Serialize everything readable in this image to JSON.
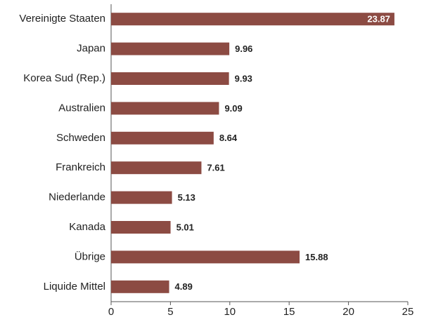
{
  "chart_data": {
    "type": "bar",
    "orientation": "horizontal",
    "categories": [
      "Vereinigte Staaten",
      "Japan",
      "Korea Sud (Rep.)",
      "Australien",
      "Schweden",
      "Frankreich",
      "Niederlande",
      "Kanada",
      "Übrige",
      "Liquide Mittel"
    ],
    "values": [
      23.87,
      9.96,
      9.93,
      9.09,
      8.64,
      7.61,
      5.13,
      5.01,
      15.88,
      4.89
    ],
    "color": "#8c4b43",
    "xlim": [
      0,
      25
    ],
    "xticks": [
      0,
      5,
      10,
      15,
      20,
      25
    ],
    "grid": false
  }
}
